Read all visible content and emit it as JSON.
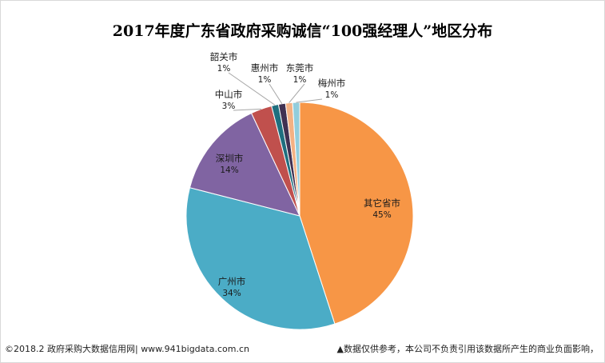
{
  "chart_data": {
    "type": "pie",
    "title": "2017年度广东省政府采购诚信“100强经理人”地区分布",
    "slices": [
      {
        "label": "其它省市",
        "value": 45,
        "pct_label": "45%",
        "color": "#f79646"
      },
      {
        "label": "广州市",
        "value": 34,
        "pct_label": "34%",
        "color": "#4bacc6"
      },
      {
        "label": "深圳市",
        "value": 14,
        "pct_label": "14%",
        "color": "#8064a2"
      },
      {
        "label": "中山市",
        "value": 3,
        "pct_label": "3%",
        "color": "#c0504d"
      },
      {
        "label": "韶关市",
        "value": 1,
        "pct_label": "1%",
        "color": "#1f6f7f"
      },
      {
        "label": "惠州市",
        "value": 1,
        "pct_label": "1%",
        "color": "#403152"
      },
      {
        "label": "东莞市",
        "value": 1,
        "pct_label": "1%",
        "color": "#f4b183"
      },
      {
        "label": "梅州市",
        "value": 1,
        "pct_label": "1%",
        "color": "#92cddc"
      }
    ]
  },
  "footer": {
    "left": "©2018.2 政府采购大数据信用网| www.941bigdata.com.cn",
    "right": "▲数据仅供参考，本公司不负责引用该数据所产生的商业负面影响，"
  }
}
